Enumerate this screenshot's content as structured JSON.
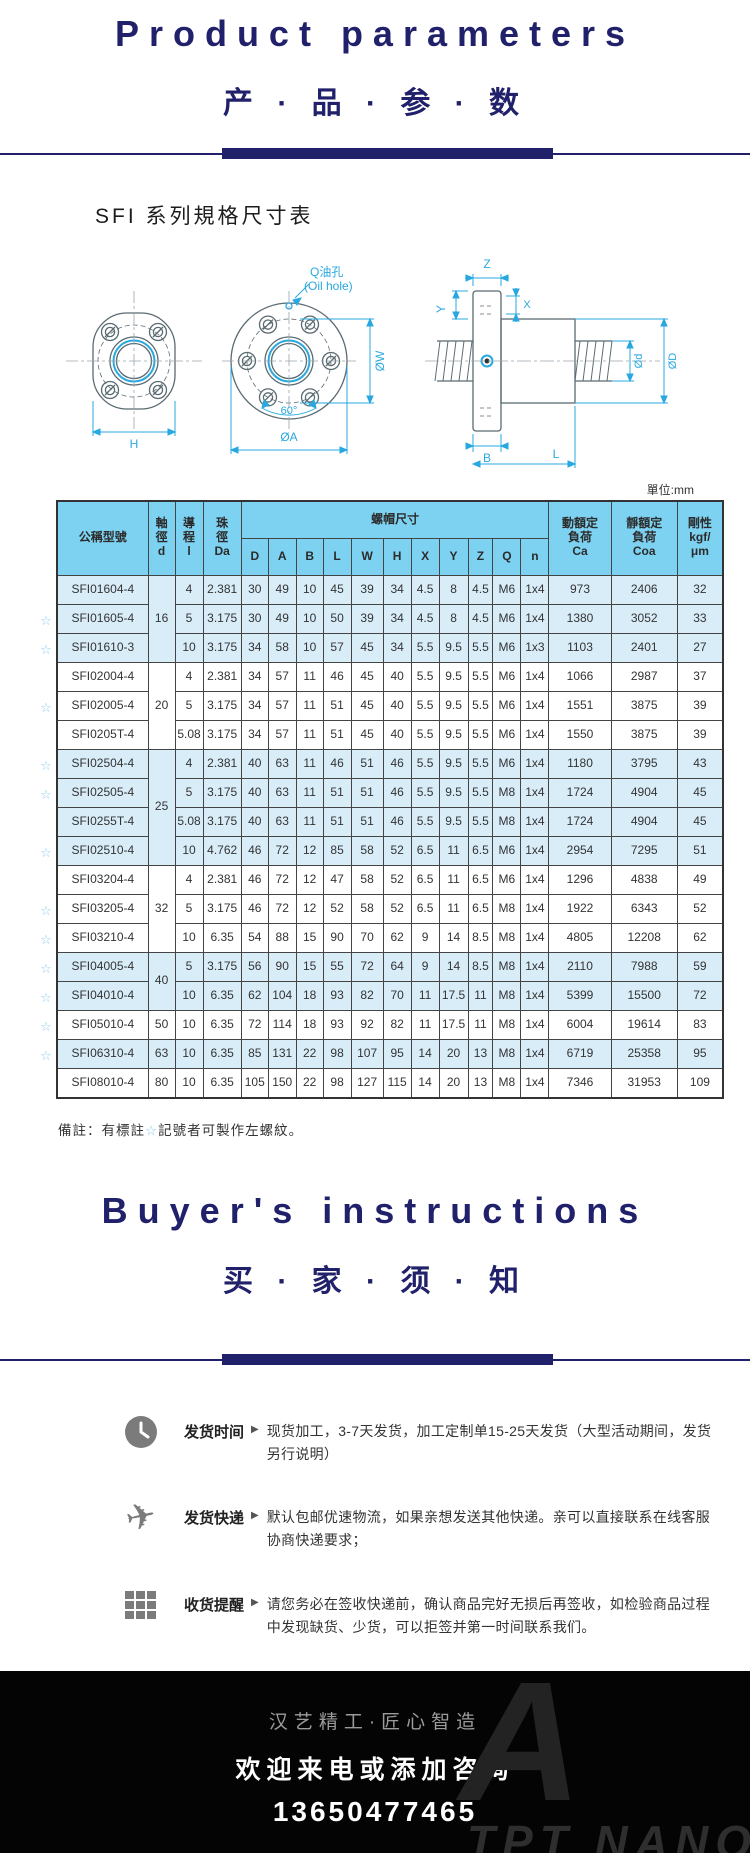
{
  "colors": {
    "navy": "#21216b",
    "header_blue": "#7ed2f1",
    "row_blue": "#d9edf9",
    "cyan": "#29a8e0",
    "star_blue": "#8ecfed",
    "footer_bg": "#000000"
  },
  "header": {
    "title_en": "Product parameters",
    "title_cn": "产 · 品 · 参 · 数"
  },
  "section": {
    "title": "SFI 系列規格尺寸表",
    "unit_note": "單位:mm"
  },
  "diagram": {
    "labels": {
      "oil_hole_cn": "Q油孔",
      "oil_hole_en": "(Oil hole)",
      "h": "H",
      "angle": "60°",
      "a": "ØA",
      "w": "ØW",
      "z": "Z",
      "y": "Y",
      "x": "X",
      "d_small": "Ød",
      "d_big": "ØD",
      "b": "B",
      "l": "L"
    }
  },
  "table": {
    "star_char": "☆",
    "header": {
      "model": "公稱型號",
      "d": "軸\n徑\nd",
      "lead": "導\n程\nl",
      "ball": "珠\n徑\nDa",
      "nut_dims": "螺帽尺寸",
      "dim_cols": [
        "D",
        "A",
        "B",
        "L",
        "W",
        "H",
        "X",
        "Y",
        "Z",
        "Q",
        "n"
      ],
      "ca": "動額定\n負荷\nCa",
      "coa": "靜額定\n負荷\nCoa",
      "rigidity": "剛性\nkgf/\nμm"
    },
    "groups": [
      {
        "d": "16",
        "rows": [
          [
            0,
            "SFI01604-4",
            "4",
            "2.381",
            "30",
            "49",
            "10",
            "45",
            "39",
            "34",
            "4.5",
            "8",
            "4.5",
            "M6",
            "1x4",
            "973",
            "2406",
            "32"
          ],
          [
            1,
            "SFI01605-4",
            "5",
            "3.175",
            "30",
            "49",
            "10",
            "50",
            "39",
            "34",
            "4.5",
            "8",
            "4.5",
            "M6",
            "1x4",
            "1380",
            "3052",
            "33"
          ],
          [
            1,
            "SFI01610-3",
            "10",
            "3.175",
            "34",
            "58",
            "10",
            "57",
            "45",
            "34",
            "5.5",
            "9.5",
            "5.5",
            "M6",
            "1x3",
            "1103",
            "2401",
            "27"
          ]
        ]
      },
      {
        "d": "20",
        "rows": [
          [
            0,
            "SFI02004-4",
            "4",
            "2.381",
            "34",
            "57",
            "11",
            "46",
            "45",
            "40",
            "5.5",
            "9.5",
            "5.5",
            "M6",
            "1x4",
            "1066",
            "2987",
            "37"
          ],
          [
            1,
            "SFI02005-4",
            "5",
            "3.175",
            "34",
            "57",
            "11",
            "51",
            "45",
            "40",
            "5.5",
            "9.5",
            "5.5",
            "M6",
            "1x4",
            "1551",
            "3875",
            "39"
          ],
          [
            0,
            "SFI0205T-4",
            "5.08",
            "3.175",
            "34",
            "57",
            "11",
            "51",
            "45",
            "40",
            "5.5",
            "9.5",
            "5.5",
            "M6",
            "1x4",
            "1550",
            "3875",
            "39"
          ]
        ]
      },
      {
        "d": "25",
        "rows": [
          [
            1,
            "SFI02504-4",
            "4",
            "2.381",
            "40",
            "63",
            "11",
            "46",
            "51",
            "46",
            "5.5",
            "9.5",
            "5.5",
            "M6",
            "1x4",
            "1180",
            "3795",
            "43"
          ],
          [
            1,
            "SFI02505-4",
            "5",
            "3.175",
            "40",
            "63",
            "11",
            "51",
            "51",
            "46",
            "5.5",
            "9.5",
            "5.5",
            "M8",
            "1x4",
            "1724",
            "4904",
            "45"
          ],
          [
            0,
            "SFI0255T-4",
            "5.08",
            "3.175",
            "40",
            "63",
            "11",
            "51",
            "51",
            "46",
            "5.5",
            "9.5",
            "5.5",
            "M8",
            "1x4",
            "1724",
            "4904",
            "45"
          ],
          [
            1,
            "SFI02510-4",
            "10",
            "4.762",
            "46",
            "72",
            "12",
            "85",
            "58",
            "52",
            "6.5",
            "11",
            "6.5",
            "M6",
            "1x4",
            "2954",
            "7295",
            "51"
          ]
        ]
      },
      {
        "d": "32",
        "rows": [
          [
            0,
            "SFI03204-4",
            "4",
            "2.381",
            "46",
            "72",
            "12",
            "47",
            "58",
            "52",
            "6.5",
            "11",
            "6.5",
            "M6",
            "1x4",
            "1296",
            "4838",
            "49"
          ],
          [
            1,
            "SFI03205-4",
            "5",
            "3.175",
            "46",
            "72",
            "12",
            "52",
            "58",
            "52",
            "6.5",
            "11",
            "6.5",
            "M8",
            "1x4",
            "1922",
            "6343",
            "52"
          ],
          [
            1,
            "SFI03210-4",
            "10",
            "6.35",
            "54",
            "88",
            "15",
            "90",
            "70",
            "62",
            "9",
            "14",
            "8.5",
            "M8",
            "1x4",
            "4805",
            "12208",
            "62"
          ]
        ]
      },
      {
        "d": "40",
        "rows": [
          [
            1,
            "SFI04005-4",
            "5",
            "3.175",
            "56",
            "90",
            "15",
            "55",
            "72",
            "64",
            "9",
            "14",
            "8.5",
            "M8",
            "1x4",
            "2110",
            "7988",
            "59"
          ],
          [
            1,
            "SFI04010-4",
            "10",
            "6.35",
            "62",
            "104",
            "18",
            "93",
            "82",
            "70",
            "11",
            "17.5",
            "11",
            "M8",
            "1x4",
            "5399",
            "15500",
            "72"
          ]
        ]
      },
      {
        "d": "50",
        "rows": [
          [
            1,
            "SFI05010-4",
            "10",
            "6.35",
            "72",
            "114",
            "18",
            "93",
            "92",
            "82",
            "11",
            "17.5",
            "11",
            "M8",
            "1x4",
            "6004",
            "19614",
            "83"
          ]
        ]
      },
      {
        "d": "63",
        "rows": [
          [
            1,
            "SFI06310-4",
            "10",
            "6.35",
            "85",
            "131",
            "22",
            "98",
            "107",
            "95",
            "14",
            "20",
            "13",
            "M8",
            "1x4",
            "6719",
            "25358",
            "95"
          ]
        ]
      },
      {
        "d": "80",
        "rows": [
          [
            0,
            "SFI08010-4",
            "10",
            "6.35",
            "105",
            "150",
            "22",
            "98",
            "127",
            "115",
            "14",
            "20",
            "13",
            "M8",
            "1x4",
            "7346",
            "31953",
            "109"
          ]
        ]
      }
    ]
  },
  "note": {
    "prefix": "備註：有標註",
    "star": "☆",
    "suffix": "記號者可製作左螺紋。"
  },
  "buyers": {
    "title_en": "Buyer's instructions",
    "title_cn": "买 · 家 · 须 · 知"
  },
  "icons": {
    "arrow": "▶",
    "plane_glyph": "✈"
  },
  "shipping": [
    {
      "label": "发货时间",
      "text": "现货加工，3-7天发货，加工定制单15-25天发货（大型活动期间，发货另行说明）"
    },
    {
      "label": "发货快递",
      "text": "默认包邮优速物流，如果亲想发送其他快递。亲可以直接联系在线客服协商快递要求；"
    },
    {
      "label": "收货提醒",
      "text": "请您务必在签收快递前，确认商品完好无损后再签收，如检验商品过程中发现缺货、少货，可以拒签并第一时间联系我们。"
    }
  ],
  "footer": {
    "line1": "汉艺精工·匠心智造",
    "line2": "欢迎来电或添加咨询",
    "phone": "13650477465",
    "watermark_letter": "A",
    "watermark": "TPT NANO"
  }
}
